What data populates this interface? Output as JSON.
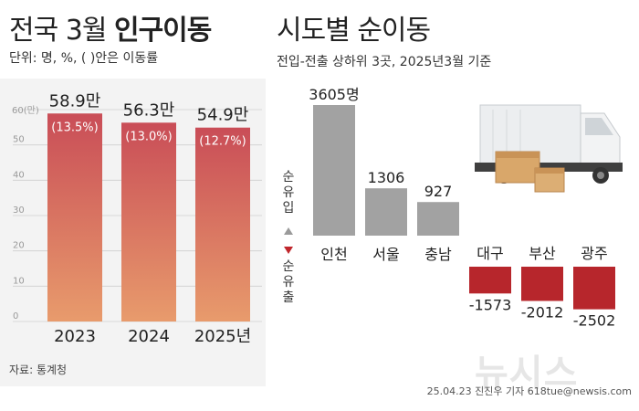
{
  "title_left_regular": "전국 3월",
  "title_left_bold": "인구이동",
  "title_right": "시도별 순이동",
  "subtitle_left": "단위: 명, %, ( )안은 이동률",
  "subtitle_right": "전입-전출 상하위 3곳, 2025년3월 기준",
  "source": "자료: 통계청",
  "credit": "25.04.23 진진우 기자 618tue@newsis.com",
  "watermark": "뉴시스",
  "colors": {
    "bar_top": "#c94d57",
    "bar_bottom": "#e89b6c",
    "pos_bar": "#a2a2a2",
    "neg_bar": "#b7262c",
    "neg_arrow": "#c0262c",
    "panel_bg": "#f3f3f3"
  },
  "chart_data": [
    {
      "type": "bar",
      "title": "전국 3월 인구이동",
      "ylabel": "",
      "ylim": [
        0,
        60
      ],
      "yticks": [
        0,
        10,
        20,
        30,
        40,
        50
      ],
      "ytick_top_label": "60(만)",
      "categories": [
        "2023",
        "2024",
        "2025년"
      ],
      "values": [
        58.9,
        56.3,
        54.9
      ],
      "value_labels": [
        "58.9만",
        "56.3만",
        "54.9만"
      ],
      "rate_labels": [
        "(13.5%)",
        "(13.0%)",
        "(12.7%)"
      ]
    },
    {
      "type": "bar",
      "title": "시도별 순이동",
      "subtitle": "전입-전출 상하위 3곳, 2025년3월 기준",
      "categories": [
        "인천",
        "서울",
        "충남",
        "대구",
        "부산",
        "광주"
      ],
      "values": [
        3605,
        1306,
        927,
        -1573,
        -2012,
        -2502
      ],
      "value_labels": [
        "3605명",
        "1306",
        "927",
        "-1573",
        "-2012",
        "-2502"
      ],
      "positive_axis_label": "순유입",
      "negative_axis_label": "순유출"
    }
  ]
}
